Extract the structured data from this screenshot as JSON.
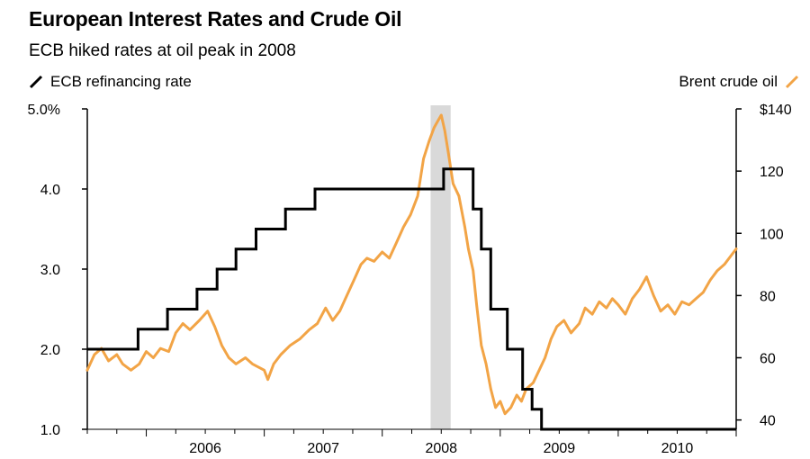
{
  "header": {
    "title": "European Interest Rates and Crude Oil",
    "subtitle": "ECB hiked rates at oil peak in 2008"
  },
  "legend": {
    "left_label": "ECB refinancing rate",
    "right_label": "Brent crude oil"
  },
  "colors": {
    "ecb": "#000000",
    "brent": "#f2a446",
    "shade": "#d9d9d9"
  },
  "chart_data": {
    "type": "line",
    "title": "European Interest Rates and Crude Oil",
    "subtitle": "ECB hiked rates at oil peak in 2008",
    "x_range": [
      2005.5,
      2011.0
    ],
    "x_ticks": [
      2006,
      2007,
      2008,
      2009,
      2010
    ],
    "x_tick_labels": [
      "2006",
      "2007",
      "2008",
      "2009",
      "2010"
    ],
    "y_left": {
      "range": [
        1.0,
        5.0
      ],
      "ticks": [
        1.0,
        2.0,
        3.0,
        4.0,
        5.0
      ],
      "tick_labels": [
        "1.0",
        "2.0",
        "3.0",
        "4.0",
        "5.0%"
      ]
    },
    "y_right": {
      "range": [
        37,
        140
      ],
      "ticks": [
        40,
        60,
        80,
        100,
        120,
        140
      ],
      "tick_labels": [
        "40",
        "60",
        "80",
        "100",
        "120",
        "$140"
      ]
    },
    "shaded_period": [
      2008.41,
      2008.58
    ],
    "series": [
      {
        "name": "ECB refinancing rate",
        "axis": "left",
        "step": true,
        "points": [
          [
            2005.5,
            2.0
          ],
          [
            2005.93,
            2.25
          ],
          [
            2006.18,
            2.5
          ],
          [
            2006.43,
            2.75
          ],
          [
            2006.6,
            3.0
          ],
          [
            2006.76,
            3.25
          ],
          [
            2006.93,
            3.5
          ],
          [
            2007.18,
            3.75
          ],
          [
            2007.43,
            4.0
          ],
          [
            2008.52,
            4.25
          ],
          [
            2008.77,
            3.75
          ],
          [
            2008.84,
            3.25
          ],
          [
            2008.92,
            2.5
          ],
          [
            2009.06,
            2.0
          ],
          [
            2009.19,
            1.5
          ],
          [
            2009.27,
            1.25
          ],
          [
            2009.35,
            1.0
          ],
          [
            2011.0,
            1.0
          ]
        ]
      },
      {
        "name": "Brent crude oil",
        "axis": "right",
        "points": [
          [
            2005.5,
            56
          ],
          [
            2005.56,
            61
          ],
          [
            2005.62,
            63
          ],
          [
            2005.68,
            59
          ],
          [
            2005.75,
            61
          ],
          [
            2005.8,
            58
          ],
          [
            2005.87,
            56
          ],
          [
            2005.94,
            58
          ],
          [
            2006.0,
            62
          ],
          [
            2006.06,
            60
          ],
          [
            2006.12,
            63
          ],
          [
            2006.19,
            62
          ],
          [
            2006.25,
            68
          ],
          [
            2006.31,
            71
          ],
          [
            2006.37,
            69
          ],
          [
            2006.45,
            72
          ],
          [
            2006.52,
            75
          ],
          [
            2006.58,
            70
          ],
          [
            2006.64,
            64
          ],
          [
            2006.7,
            60
          ],
          [
            2006.76,
            58
          ],
          [
            2006.84,
            60
          ],
          [
            2006.9,
            58
          ],
          [
            2007.0,
            56
          ],
          [
            2007.03,
            53
          ],
          [
            2007.08,
            58
          ],
          [
            2007.14,
            61
          ],
          [
            2007.22,
            64
          ],
          [
            2007.3,
            66
          ],
          [
            2007.38,
            69
          ],
          [
            2007.45,
            71
          ],
          [
            2007.52,
            76
          ],
          [
            2007.58,
            72
          ],
          [
            2007.64,
            75
          ],
          [
            2007.7,
            80
          ],
          [
            2007.76,
            85
          ],
          [
            2007.82,
            90
          ],
          [
            2007.87,
            92
          ],
          [
            2007.93,
            91
          ],
          [
            2008.0,
            94
          ],
          [
            2008.06,
            92
          ],
          [
            2008.12,
            97
          ],
          [
            2008.18,
            102
          ],
          [
            2008.24,
            106
          ],
          [
            2008.3,
            112
          ],
          [
            2008.35,
            124
          ],
          [
            2008.4,
            130
          ],
          [
            2008.44,
            134
          ],
          [
            2008.47,
            136
          ],
          [
            2008.5,
            138
          ],
          [
            2008.53,
            133
          ],
          [
            2008.56,
            126
          ],
          [
            2008.6,
            116
          ],
          [
            2008.65,
            112
          ],
          [
            2008.7,
            102
          ],
          [
            2008.73,
            95
          ],
          [
            2008.77,
            88
          ],
          [
            2008.8,
            77
          ],
          [
            2008.84,
            64
          ],
          [
            2008.88,
            58
          ],
          [
            2008.92,
            50
          ],
          [
            2008.96,
            44
          ],
          [
            2009.0,
            46
          ],
          [
            2009.04,
            42
          ],
          [
            2009.09,
            44
          ],
          [
            2009.14,
            48
          ],
          [
            2009.18,
            46
          ],
          [
            2009.22,
            50
          ],
          [
            2009.28,
            52
          ],
          [
            2009.33,
            56
          ],
          [
            2009.38,
            60
          ],
          [
            2009.43,
            66
          ],
          [
            2009.48,
            70
          ],
          [
            2009.54,
            72
          ],
          [
            2009.6,
            68
          ],
          [
            2009.67,
            71
          ],
          [
            2009.72,
            76
          ],
          [
            2009.78,
            74
          ],
          [
            2009.84,
            78
          ],
          [
            2009.9,
            76
          ],
          [
            2009.95,
            79
          ],
          [
            2010.0,
            77
          ],
          [
            2010.06,
            74
          ],
          [
            2010.12,
            79
          ],
          [
            2010.18,
            82
          ],
          [
            2010.24,
            86
          ],
          [
            2010.3,
            80
          ],
          [
            2010.36,
            75
          ],
          [
            2010.42,
            77
          ],
          [
            2010.48,
            74
          ],
          [
            2010.54,
            78
          ],
          [
            2010.6,
            77
          ],
          [
            2010.66,
            79
          ],
          [
            2010.72,
            81
          ],
          [
            2010.78,
            85
          ],
          [
            2010.84,
            88
          ],
          [
            2010.9,
            90
          ],
          [
            2010.96,
            93
          ],
          [
            2011.0,
            95
          ]
        ]
      }
    ]
  }
}
